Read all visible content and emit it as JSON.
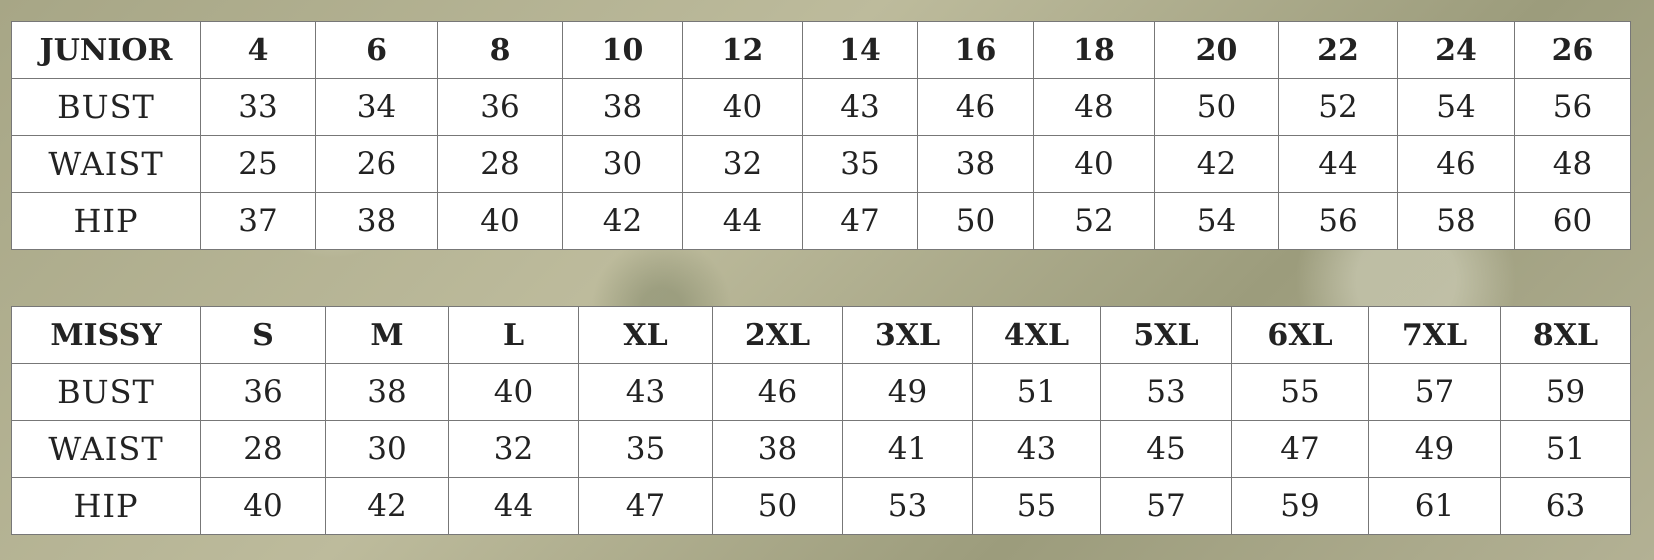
{
  "junior": {
    "header": [
      "JUNIOR",
      "4",
      "6",
      "8",
      "10",
      "12",
      "14",
      "16",
      "18",
      "20",
      "22",
      "24",
      "26"
    ],
    "rows": [
      {
        "label": "BUST",
        "values": [
          "33",
          "34",
          "36",
          "38",
          "40",
          "43",
          "46",
          "48",
          "50",
          "52",
          "54",
          "56"
        ]
      },
      {
        "label": "WAIST",
        "values": [
          "25",
          "26",
          "28",
          "30",
          "32",
          "35",
          "38",
          "40",
          "42",
          "44",
          "46",
          "48"
        ]
      },
      {
        "label": "HIP",
        "values": [
          "37",
          "38",
          "40",
          "42",
          "44",
          "47",
          "50",
          "52",
          "54",
          "56",
          "58",
          "60"
        ]
      }
    ]
  },
  "missy": {
    "header": [
      "MISSY",
      "S",
      "M",
      "L",
      "XL",
      "2XL",
      "3XL",
      "4XL",
      "5XL",
      "6XL",
      "7XL",
      "8XL"
    ],
    "rows": [
      {
        "label": "BUST",
        "values": [
          "36",
          "38",
          "40",
          "43",
          "46",
          "49",
          "51",
          "53",
          "55",
          "57",
          "59"
        ]
      },
      {
        "label": "WAIST",
        "values": [
          "28",
          "30",
          "32",
          "35",
          "38",
          "41",
          "43",
          "45",
          "47",
          "49",
          "51"
        ]
      },
      {
        "label": "HIP",
        "values": [
          "40",
          "42",
          "44",
          "47",
          "50",
          "53",
          "55",
          "57",
          "59",
          "61",
          "63"
        ]
      }
    ]
  }
}
